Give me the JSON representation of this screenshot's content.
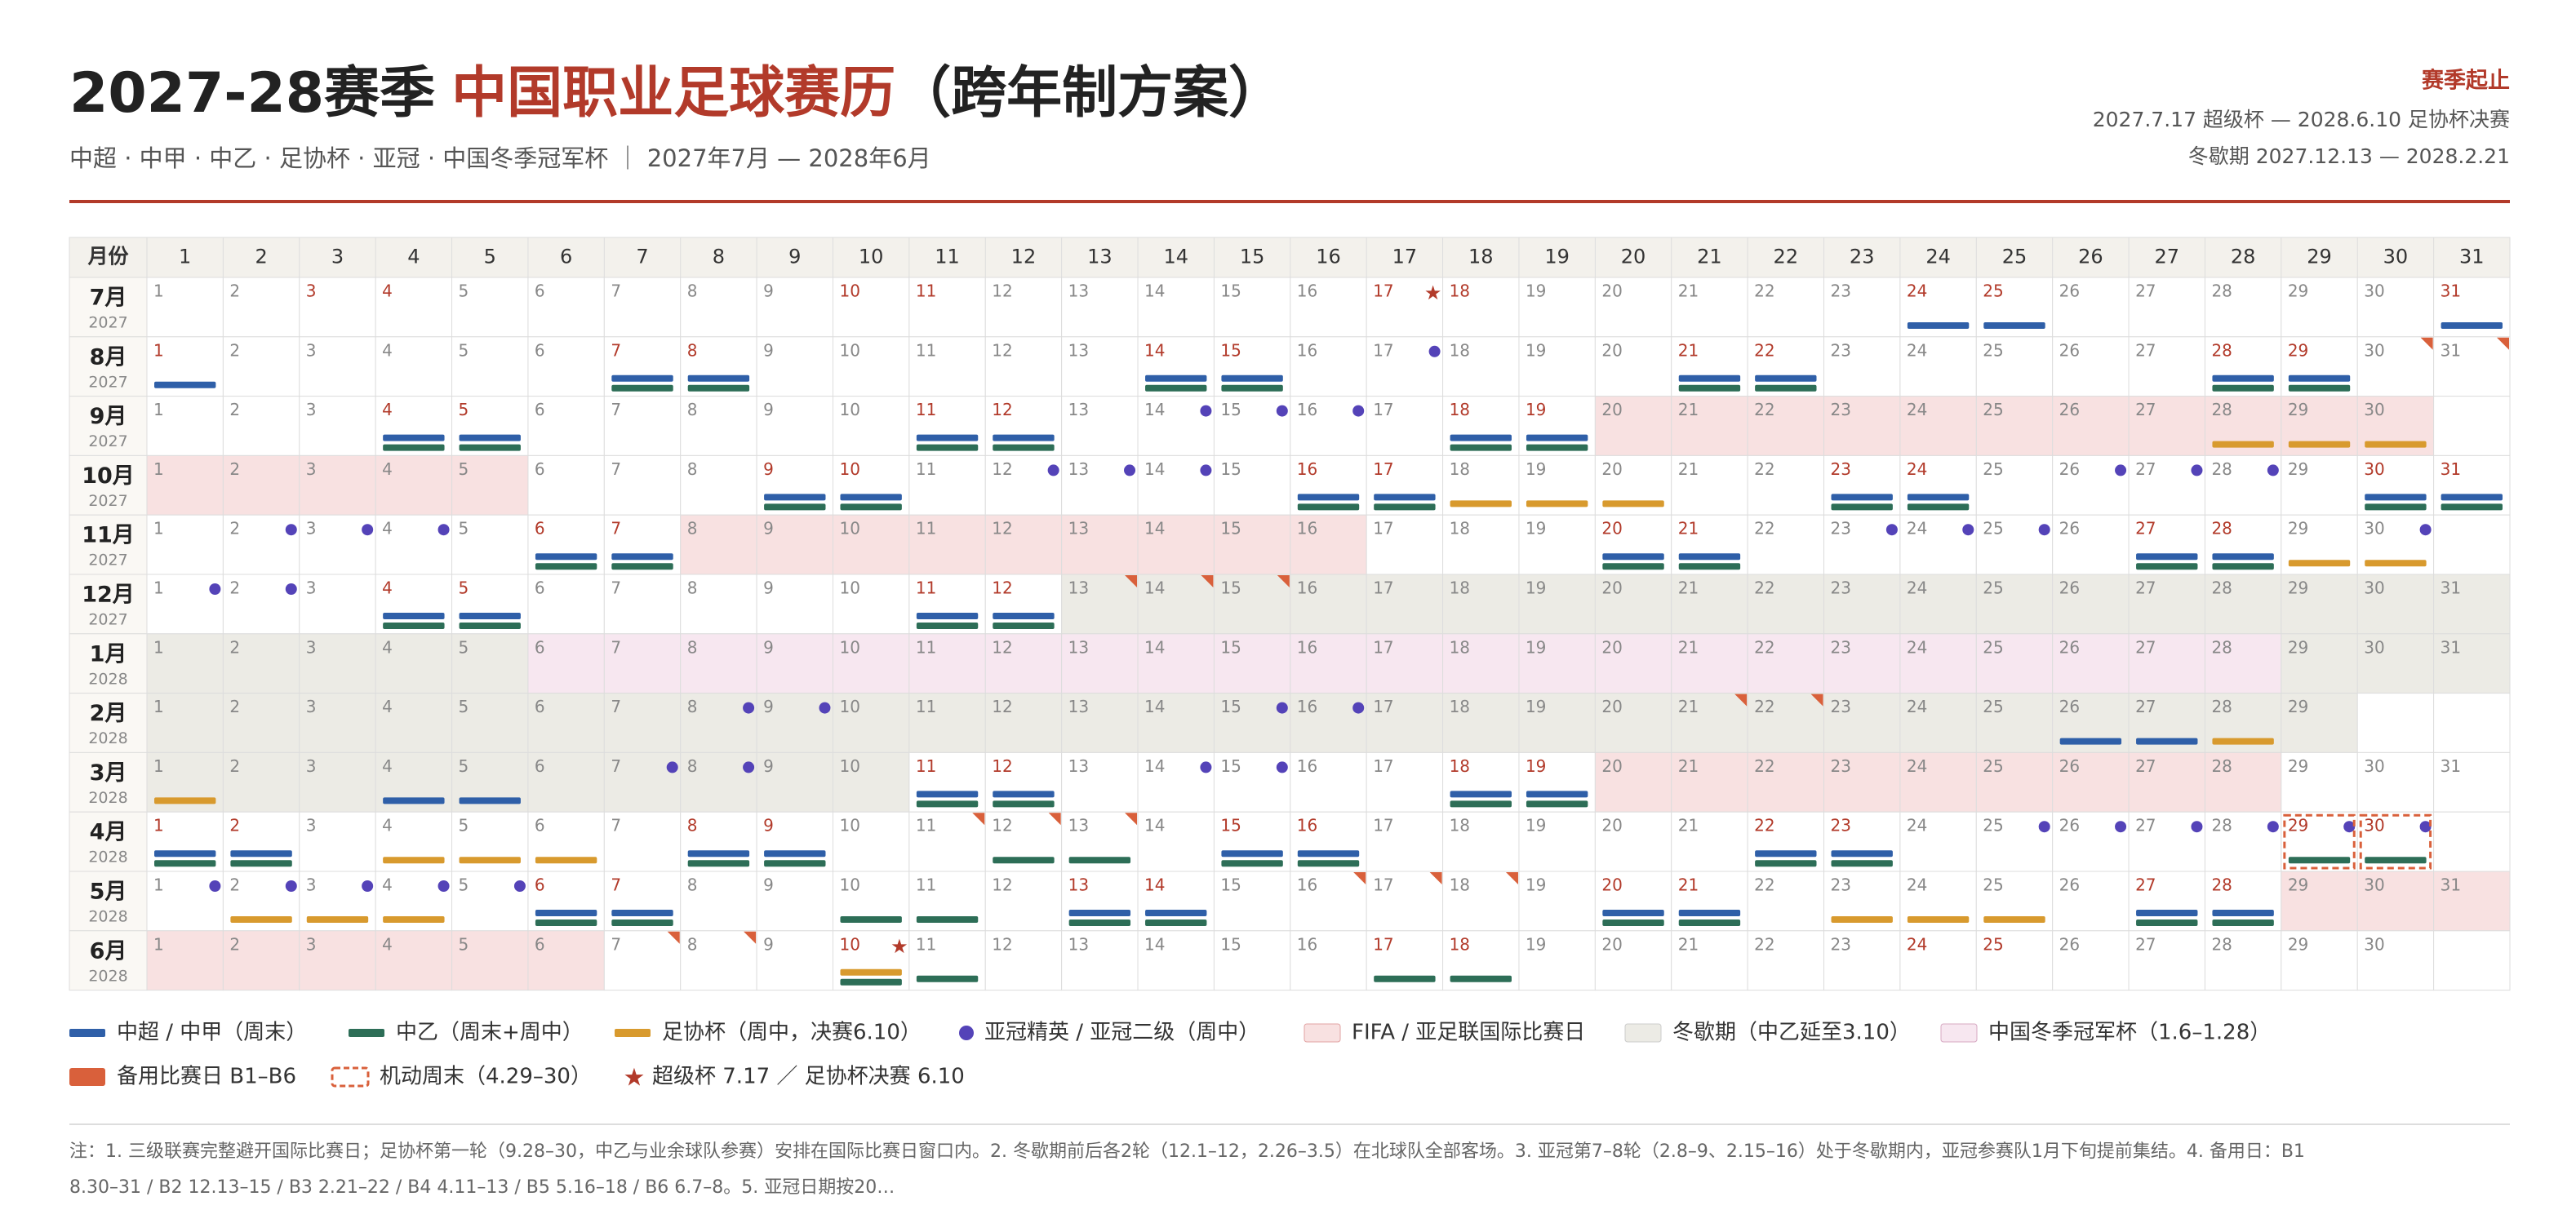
{
  "header": {
    "title_a": "2027-28赛季",
    "title_b": "中国职业足球赛历",
    "title_c": "（跨年制方案）",
    "subtitle": "中超 · 中甲 · 中乙 · 足协杯 · 亚冠 · 中国冬季冠军杯  ｜  2027年7月 — 2028年6月",
    "season_label": "赛季起止",
    "season_range": "2027.7.17 超级杯 — 2028.6.10 足协杯决赛",
    "winter_range": "冬歇期 2027.12.13 — 2028.2.21"
  },
  "calendar": {
    "corner": "月份",
    "columns": [
      1,
      2,
      3,
      4,
      5,
      6,
      7,
      8,
      9,
      10,
      11,
      12,
      13,
      14,
      15,
      16,
      17,
      18,
      19,
      20,
      21,
      22,
      23,
      24,
      25,
      26,
      27,
      28,
      29,
      30,
      31
    ],
    "months": [
      {
        "label": "7月",
        "year": "2027",
        "days": [
          1,
          2,
          3,
          4,
          5,
          6,
          7,
          8,
          9,
          10,
          11,
          12,
          13,
          14,
          15,
          16,
          17,
          18,
          19,
          20,
          21,
          22,
          23,
          24,
          25,
          26,
          27,
          28,
          29,
          30,
          31
        ],
        "red": [
          3,
          4,
          10,
          11,
          17,
          18,
          24,
          25,
          31
        ],
        "blue": [
          24,
          25,
          31
        ],
        "star": [
          17
        ]
      },
      {
        "label": "8月",
        "year": "2027",
        "days": [
          1,
          2,
          3,
          4,
          5,
          6,
          7,
          8,
          9,
          10,
          11,
          12,
          13,
          14,
          15,
          16,
          17,
          18,
          19,
          20,
          21,
          22,
          23,
          24,
          25,
          26,
          27,
          28,
          29,
          30,
          31
        ],
        "red": [
          1,
          7,
          8,
          14,
          15,
          21,
          22,
          28,
          29
        ],
        "blue": [
          1,
          7,
          8,
          14,
          15,
          21,
          22,
          28,
          29
        ],
        "green": [
          7,
          8,
          14,
          15,
          21,
          22,
          28,
          29
        ],
        "dot": [
          17
        ],
        "tri": [
          30,
          31
        ]
      },
      {
        "label": "9月",
        "year": "2027",
        "days": [
          1,
          2,
          3,
          4,
          5,
          6,
          7,
          8,
          9,
          10,
          11,
          12,
          13,
          14,
          15,
          16,
          17,
          18,
          19,
          20,
          21,
          22,
          23,
          24,
          25,
          26,
          27,
          28,
          29,
          30
        ],
        "red": [
          4,
          5,
          11,
          12,
          18,
          19
        ],
        "blue": [
          4,
          5,
          11,
          12,
          18,
          19
        ],
        "green": [
          4,
          5,
          11,
          12,
          18,
          19
        ],
        "dot": [
          14,
          15,
          16
        ],
        "fifa": [
          20,
          21,
          22,
          23,
          24,
          25,
          26,
          27,
          28,
          29,
          30
        ],
        "orange": [
          28,
          29,
          30
        ]
      },
      {
        "label": "10月",
        "year": "2027",
        "days": [
          1,
          2,
          3,
          4,
          5,
          6,
          7,
          8,
          9,
          10,
          11,
          12,
          13,
          14,
          15,
          16,
          17,
          18,
          19,
          20,
          21,
          22,
          23,
          24,
          25,
          26,
          27,
          28,
          29,
          30,
          31
        ],
        "red": [
          9,
          10,
          16,
          17,
          23,
          24,
          30,
          31
        ],
        "blue": [
          9,
          10,
          16,
          17,
          23,
          24,
          30,
          31
        ],
        "green": [
          9,
          10,
          16,
          17,
          23,
          24,
          30,
          31
        ],
        "fifa": [
          1,
          2,
          3,
          4,
          5
        ],
        "orange": [
          18,
          19,
          20
        ],
        "dot": [
          12,
          13,
          14,
          26,
          27,
          28
        ]
      },
      {
        "label": "11月",
        "year": "2027",
        "days": [
          1,
          2,
          3,
          4,
          5,
          6,
          7,
          8,
          9,
          10,
          11,
          12,
          13,
          14,
          15,
          16,
          17,
          18,
          19,
          20,
          21,
          22,
          23,
          24,
          25,
          26,
          27,
          28,
          29,
          30
        ],
        "red": [
          6,
          7,
          20,
          21,
          27,
          28
        ],
        "blue": [
          6,
          7,
          20,
          21,
          27,
          28
        ],
        "green": [
          6,
          7,
          20,
          21,
          27,
          28
        ],
        "fifa": [
          8,
          9,
          10,
          11,
          12,
          13,
          14,
          15,
          16
        ],
        "dot": [
          2,
          3,
          4,
          23,
          24,
          25,
          30
        ],
        "orange": [
          29,
          30
        ]
      },
      {
        "label": "12月",
        "year": "2027",
        "days": [
          1,
          2,
          3,
          4,
          5,
          6,
          7,
          8,
          9,
          10,
          11,
          12,
          13,
          14,
          15,
          16,
          17,
          18,
          19,
          20,
          21,
          22,
          23,
          24,
          25,
          26,
          27,
          28,
          29,
          30,
          31
        ],
        "red": [
          4,
          5,
          11,
          12
        ],
        "blue": [
          4,
          5,
          11,
          12
        ],
        "green": [
          4,
          5,
          11,
          12
        ],
        "dot": [
          1,
          2
        ],
        "tri": [
          13,
          14,
          15
        ],
        "winter": [
          13,
          14,
          15,
          16,
          17,
          18,
          19,
          20,
          21,
          22,
          23,
          24,
          25,
          26,
          27,
          28,
          29,
          30,
          31
        ]
      },
      {
        "label": "1月",
        "year": "2028",
        "days": [
          1,
          2,
          3,
          4,
          5,
          6,
          7,
          8,
          9,
          10,
          11,
          12,
          13,
          14,
          15,
          16,
          17,
          18,
          19,
          20,
          21,
          22,
          23,
          24,
          25,
          26,
          27,
          28,
          29,
          30,
          31
        ],
        "winter": [
          1,
          2,
          3,
          4,
          5,
          29,
          30,
          31
        ],
        "cup": [
          6,
          7,
          8,
          9,
          10,
          11,
          12,
          13,
          14,
          15,
          16,
          17,
          18,
          19,
          20,
          21,
          22,
          23,
          24,
          25,
          26,
          27,
          28
        ]
      },
      {
        "label": "2月",
        "year": "2028",
        "days": [
          1,
          2,
          3,
          4,
          5,
          6,
          7,
          8,
          9,
          10,
          11,
          12,
          13,
          14,
          15,
          16,
          17,
          18,
          19,
          20,
          21,
          22,
          23,
          24,
          25,
          26,
          27,
          28,
          29
        ],
        "winter": [
          1,
          2,
          3,
          4,
          5,
          6,
          7,
          8,
          9,
          10,
          11,
          12,
          13,
          14,
          15,
          16,
          17,
          18,
          19,
          20,
          21,
          22,
          23,
          24,
          25,
          26,
          27,
          28,
          29
        ],
        "dot": [
          8,
          9,
          15,
          16
        ],
        "tri": [
          21,
          22
        ],
        "blue": [
          26,
          27
        ],
        "orange": [
          28
        ]
      },
      {
        "label": "3月",
        "year": "2028",
        "days": [
          1,
          2,
          3,
          4,
          5,
          6,
          7,
          8,
          9,
          10,
          11,
          12,
          13,
          14,
          15,
          16,
          17,
          18,
          19,
          20,
          21,
          22,
          23,
          24,
          25,
          26,
          27,
          28,
          29,
          30,
          31
        ],
        "red": [
          11,
          12,
          18,
          19
        ],
        "winter": [
          1,
          2,
          3,
          4,
          5,
          6,
          7,
          8,
          9,
          10
        ],
        "blue": [
          4,
          5,
          11,
          12,
          18,
          19
        ],
        "green": [
          11,
          12,
          18,
          19
        ],
        "orange": [
          1
        ],
        "dot": [
          7,
          8,
          14,
          15
        ],
        "fifa": [
          20,
          21,
          22,
          23,
          24,
          25,
          26,
          27,
          28
        ]
      },
      {
        "label": "4月",
        "year": "2028",
        "days": [
          1,
          2,
          3,
          4,
          5,
          6,
          7,
          8,
          9,
          10,
          11,
          12,
          13,
          14,
          15,
          16,
          17,
          18,
          19,
          20,
          21,
          22,
          23,
          24,
          25,
          26,
          27,
          28,
          29,
          30
        ],
        "red": [
          1,
          2,
          8,
          9,
          15,
          16,
          22,
          23,
          29,
          30
        ],
        "blue": [
          1,
          2,
          8,
          9,
          15,
          16,
          22,
          23
        ],
        "green": [
          1,
          2,
          8,
          9,
          12,
          13,
          15,
          16,
          22,
          23,
          29,
          30
        ],
        "orange": [
          4,
          5,
          6
        ],
        "dot": [
          25,
          26,
          27,
          28,
          29,
          30
        ],
        "tri": [
          11,
          12,
          13
        ],
        "flex": [
          29,
          30
        ]
      },
      {
        "label": "5月",
        "year": "2028",
        "days": [
          1,
          2,
          3,
          4,
          5,
          6,
          7,
          8,
          9,
          10,
          11,
          12,
          13,
          14,
          15,
          16,
          17,
          18,
          19,
          20,
          21,
          22,
          23,
          24,
          25,
          26,
          27,
          28,
          29,
          30,
          31
        ],
        "red": [
          6,
          7,
          13,
          14,
          20,
          21,
          27,
          28
        ],
        "blue": [
          6,
          7,
          13,
          14,
          20,
          21,
          27,
          28
        ],
        "green": [
          6,
          7,
          10,
          11,
          13,
          14,
          20,
          21,
          27,
          28
        ],
        "orange": [
          2,
          3,
          4,
          23,
          24,
          25
        ],
        "dot": [
          1,
          2,
          3,
          4,
          5
        ],
        "tri": [
          16,
          17,
          18
        ],
        "fifa": [
          29,
          30,
          31
        ]
      },
      {
        "label": "6月",
        "year": "2028",
        "days": [
          1,
          2,
          3,
          4,
          5,
          6,
          7,
          8,
          9,
          10,
          11,
          12,
          13,
          14,
          15,
          16,
          17,
          18,
          19,
          20,
          21,
          22,
          23,
          24,
          25,
          26,
          27,
          28,
          29,
          30
        ],
        "red": [
          10,
          17,
          18,
          24,
          25
        ],
        "fifa": [
          1,
          2,
          3,
          4,
          5,
          6
        ],
        "tri": [
          7,
          8
        ],
        "orange": [
          10
        ],
        "green": [
          10,
          11,
          17,
          18
        ],
        "star": [
          10
        ]
      }
    ]
  },
  "legend": [
    "中超 / 中甲（周末）",
    "中乙（周末+周中）",
    "足协杯（周中，决赛6.10）",
    "亚冠精英 / 亚冠二级（周中）",
    "FIFA / 亚足联国际比赛日",
    "冬歇期（中乙延至3.10）",
    "中国冬季冠军杯（1.6–1.28）",
    "备用比赛日 B1–B6",
    "机动周末（4.29–30）",
    "超级杯 7.17 ／ 足协杯决赛 6.10"
  ],
  "notes": [
    "注：1. 三级联赛完整避开国际比赛日；足协杯第一轮（9.28–30，中乙与业余球队参赛）安排在国际比赛日窗口内。2. 冬歇期前后各2轮（12.1–12，2.26–3.5）在北球队全部客场。3. 亚冠第7–8轮（2.8–9、2.15–16）处于冬歇期内，亚冠参赛队1月下旬提前集结。4. 备用日：B1",
    "8.30–31 / B2 12.13–15 / B3 2.21–22 / B4 4.11–13 / B5 5.16–18 / B6 6.7–8。5. 亚冠日期按20…"
  ]
}
